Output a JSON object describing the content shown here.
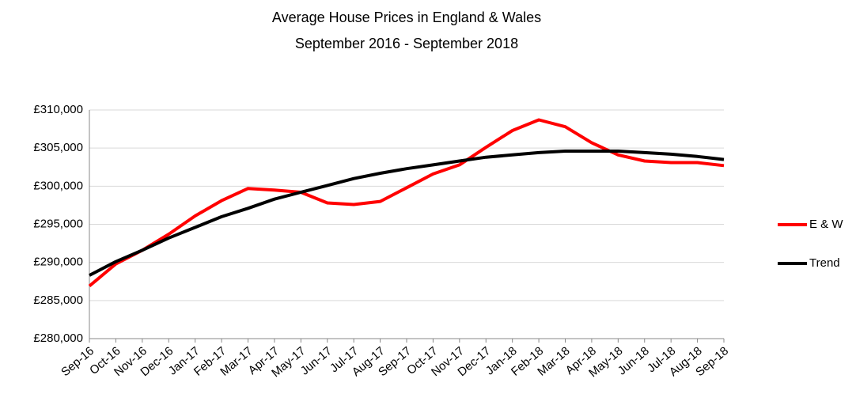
{
  "chart_data": {
    "type": "line",
    "title": "Average House Prices in England & Wales",
    "subtitle": "September 2016 - September 2018",
    "categories": [
      "Sep-16",
      "Oct-16",
      "Nov-16",
      "Dec-16",
      "Jan-17",
      "Feb-17",
      "Mar-17",
      "Apr-17",
      "May-17",
      "Jun-17",
      "Jul-17",
      "Aug-17",
      "Sep-17",
      "Oct-17",
      "Nov-17",
      "Dec-17",
      "Jan-18",
      "Feb-18",
      "Mar-18",
      "Apr-18",
      "May-18",
      "Jun-18",
      "Jul-18",
      "Aug-18",
      "Sep-18"
    ],
    "series": [
      {
        "name": "E & W",
        "color": "#ff0000",
        "values": [
          286900,
          289800,
          291600,
          293700,
          296100,
          298100,
          299700,
          299500,
          299200,
          297800,
          297600,
          298000,
          299800,
          301600,
          302800,
          305100,
          307300,
          308700,
          307800,
          305700,
          304100,
          303300,
          303100,
          303100,
          302700
        ]
      },
      {
        "name": "Trend",
        "color": "#000000",
        "values": [
          288300,
          290100,
          291600,
          293200,
          294600,
          296000,
          297100,
          298300,
          299200,
          300100,
          301000,
          301700,
          302300,
          302800,
          303300,
          303800,
          304100,
          304400,
          304600,
          304600,
          304600,
          304400,
          304200,
          303900,
          303500
        ]
      }
    ],
    "ylim": [
      280000,
      310000
    ],
    "yticks": [
      {
        "value": 280000,
        "label": "£280,000"
      },
      {
        "value": 285000,
        "label": "£285,000"
      },
      {
        "value": 290000,
        "label": "£290,000"
      },
      {
        "value": 295000,
        "label": "£295,000"
      },
      {
        "value": 300000,
        "label": "£300,000"
      },
      {
        "value": 305000,
        "label": "£305,000"
      },
      {
        "value": 310000,
        "label": "£310,000"
      }
    ],
    "grid": true,
    "legend": "right"
  }
}
